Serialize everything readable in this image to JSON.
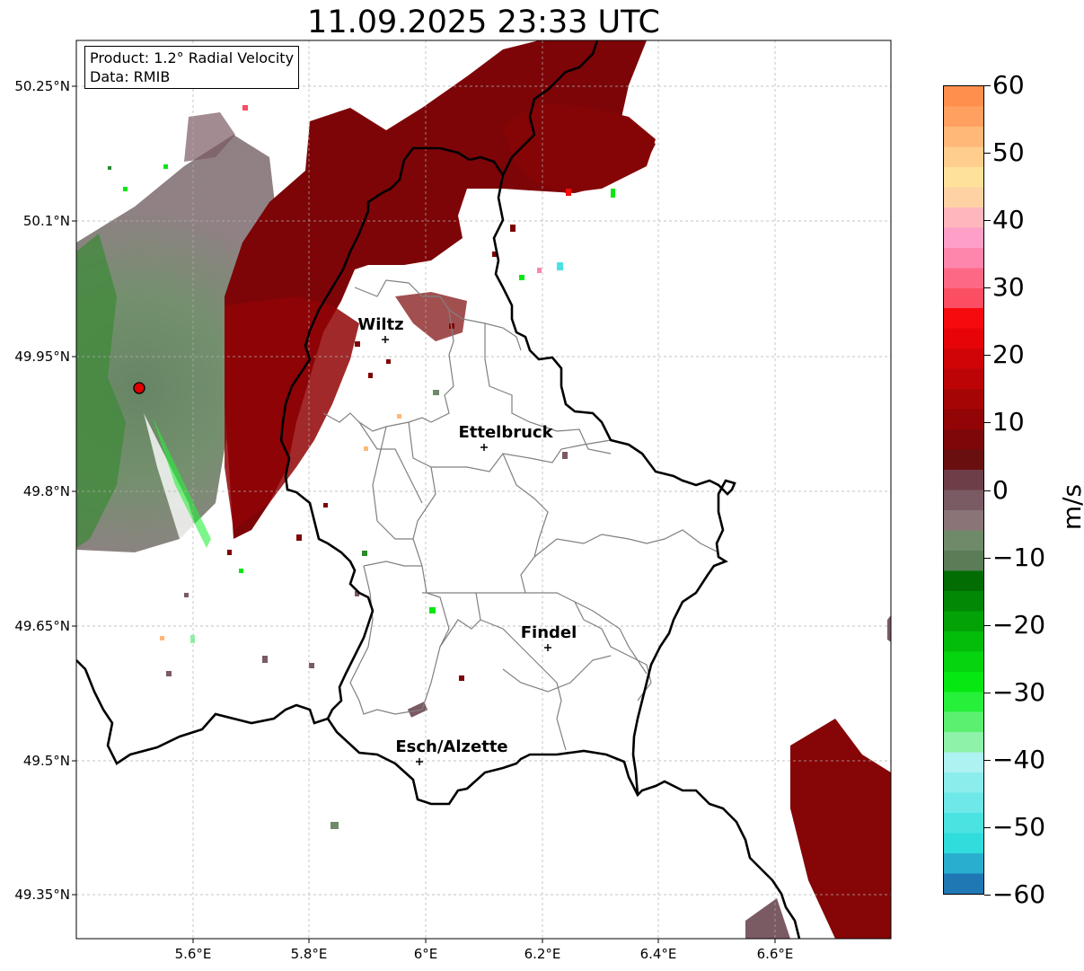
{
  "title": "11.09.2025 23:33 UTC",
  "info": {
    "product": "Product: 1.2° Radial Velocity",
    "data": "Data: RMIB"
  },
  "lat_labels": [
    "50.25°N",
    "50.1°N",
    "49.95°N",
    "49.8°N",
    "49.65°N",
    "49.5°N",
    "49.35°N"
  ],
  "lon_labels": [
    "5.6°E",
    "5.8°E",
    "6°E",
    "6.2°E",
    "6.4°E",
    "6.6°E"
  ],
  "cities": [
    {
      "name": "Wiltz"
    },
    {
      "name": "Ettelbruck"
    },
    {
      "name": "Findel"
    },
    {
      "name": "Esch/Alzette"
    }
  ],
  "colorbar": {
    "unit": "m/s",
    "ticks": [
      "60",
      "50",
      "40",
      "30",
      "20",
      "10",
      "0",
      "−10",
      "−20",
      "−30",
      "−40",
      "−50",
      "−60"
    ],
    "range": [
      -60,
      60
    ],
    "colors": [
      "#1f78b4",
      "#2aaecf",
      "#30dcdc",
      "#4be2e2",
      "#6ee8e8",
      "#8ceded",
      "#aef2f2",
      "#8ef2a8",
      "#5cf070",
      "#27f03a",
      "#07e813",
      "#05d40e",
      "#04bd0a",
      "#03a307",
      "#028804",
      "#016d02",
      "#5a7d58",
      "#6f8a69",
      "#8a7478",
      "#7a5a63",
      "#6e3e48",
      "#6a0f10",
      "#7d0709",
      "#920405",
      "#a60506",
      "#bc0407",
      "#d00406",
      "#e60408",
      "#f70a0e",
      "#fc4e63",
      "#fd6985",
      "#fe86ad",
      "#fd9fc7",
      "#ffb6bd",
      "#ffd2a4",
      "#ffe29a",
      "#ffcd8c",
      "#ffb877",
      "#ffa060",
      "#ff8f4d"
    ],
    "colors_order": "bottom-to-top"
  },
  "radar": {
    "site_marker": "red-circle",
    "scan": "radial-velocity"
  }
}
